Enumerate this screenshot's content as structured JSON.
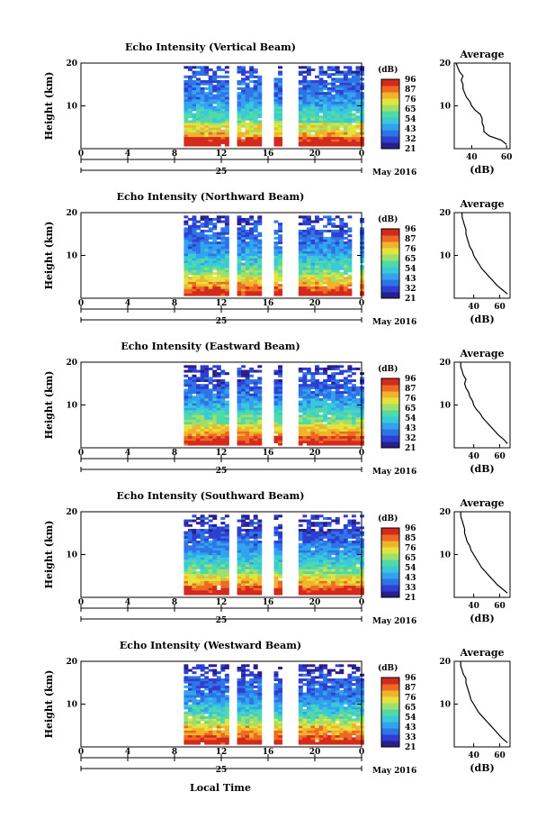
{
  "chart_data": [
    {
      "type": "heatmap",
      "title": "Echo Intensity (Vertical Beam)",
      "ylabel": "Height (km)",
      "xticks": [
        "0",
        "4",
        "8",
        "12",
        "16",
        "20",
        "0"
      ],
      "day_label": "25",
      "month_label": "May 2016",
      "ylim": [
        0,
        20
      ],
      "yticks": [
        "20",
        "10"
      ],
      "xlim": [
        0,
        24
      ],
      "data_start_hour": 8.8,
      "gaps_hours": [
        [
          12.7,
          13.3
        ],
        [
          15.6,
          16.4
        ],
        [
          17.3,
          17.6
        ],
        [
          18.0,
          18.3
        ]
      ],
      "colorbar": {
        "unit": "(dB)",
        "ticks": [
          "96",
          "87",
          "76",
          "65",
          "54",
          "43",
          "32",
          "21"
        ]
      },
      "average_profile": {
        "title": "Average",
        "xlabel": "(dB)",
        "xticks": [
          "40",
          "60"
        ],
        "xlim": [
          30,
          62
        ],
        "heights_km": [
          1,
          2,
          3,
          4,
          5,
          6,
          7,
          8,
          9,
          10,
          11,
          12,
          13,
          14,
          15,
          16,
          17,
          18,
          19,
          20
        ],
        "values_db": [
          60,
          57,
          50,
          47,
          47,
          46,
          46,
          45,
          42,
          40,
          39,
          37,
          36,
          35,
          35,
          34,
          35,
          33,
          32,
          31
        ]
      }
    },
    {
      "type": "heatmap",
      "title": "Echo Intensity (Northward Beam)",
      "ylabel": "Height (km)",
      "xticks": [
        "0",
        "4",
        "8",
        "12",
        "16",
        "20",
        "0"
      ],
      "day_label": "25",
      "month_label": "May 2016",
      "ylim": [
        0,
        20
      ],
      "yticks": [
        "20",
        "10"
      ],
      "xlim": [
        0,
        24
      ],
      "data_start_hour": 8.8,
      "gaps_hours": [
        [
          12.7,
          13.3
        ],
        [
          15.6,
          16.4
        ],
        [
          17.3,
          17.6
        ],
        [
          18.0,
          18.3
        ],
        [
          23.3,
          23.6
        ]
      ],
      "colorbar": {
        "unit": "(dB)",
        "ticks": [
          "96",
          "87",
          "76",
          "65",
          "54",
          "43",
          "32",
          "21"
        ]
      },
      "average_profile": {
        "title": "Average",
        "xlabel": "(dB)",
        "xticks": [
          "40",
          "60"
        ],
        "xlim": [
          25,
          68
        ],
        "heights_km": [
          1,
          2,
          3,
          4,
          5,
          6,
          7,
          8,
          9,
          10,
          11,
          12,
          13,
          14,
          15,
          16,
          17,
          18,
          19,
          20
        ],
        "values_db": [
          66,
          62,
          58,
          55,
          52,
          49,
          46,
          44,
          42,
          40,
          39,
          37,
          36,
          35,
          34,
          34,
          33,
          32,
          31,
          31
        ]
      }
    },
    {
      "type": "heatmap",
      "title": "Echo Intensity (Eastward Beam)",
      "ylabel": "Height (km)",
      "xticks": [
        "0",
        "4",
        "8",
        "12",
        "16",
        "20",
        "0"
      ],
      "day_label": "25",
      "month_label": "May 2016",
      "ylim": [
        0,
        20
      ],
      "yticks": [
        "20",
        "10"
      ],
      "xlim": [
        0,
        24
      ],
      "data_start_hour": 8.8,
      "gaps_hours": [
        [
          12.7,
          13.3
        ],
        [
          15.6,
          16.4
        ],
        [
          17.3,
          17.6
        ],
        [
          18.0,
          18.3
        ]
      ],
      "colorbar": {
        "unit": "(dB)",
        "ticks": [
          "96",
          "87",
          "76",
          "65",
          "54",
          "43",
          "32",
          "21"
        ]
      },
      "average_profile": {
        "title": "Average",
        "xlabel": "(dB)",
        "xticks": [
          "40",
          "60"
        ],
        "xlim": [
          25,
          68
        ],
        "heights_km": [
          1,
          2,
          3,
          4,
          5,
          6,
          7,
          8,
          9,
          10,
          11,
          12,
          13,
          14,
          15,
          16,
          17,
          18,
          19,
          20
        ],
        "values_db": [
          66,
          63,
          59,
          56,
          53,
          50,
          47,
          45,
          42,
          40,
          39,
          37,
          36,
          34,
          33,
          34,
          32,
          31,
          30,
          30
        ]
      }
    },
    {
      "type": "heatmap",
      "title": "Echo Intensity (Southward Beam)",
      "ylabel": "Height (km)",
      "xticks": [
        "0",
        "4",
        "8",
        "12",
        "16",
        "20",
        "0"
      ],
      "day_label": "25",
      "month_label": "May 2016",
      "ylim": [
        0,
        20
      ],
      "yticks": [
        "20",
        "10"
      ],
      "xlim": [
        0,
        24
      ],
      "data_start_hour": 8.8,
      "gaps_hours": [
        [
          12.7,
          13.3
        ],
        [
          15.6,
          16.4
        ],
        [
          17.3,
          17.6
        ],
        [
          18.0,
          18.3
        ]
      ],
      "colorbar": {
        "unit": "(dB)",
        "ticks": [
          "96",
          "85",
          "76",
          "65",
          "54",
          "43",
          "33",
          "21"
        ]
      },
      "average_profile": {
        "title": "Average",
        "xlabel": "(dB)",
        "xticks": [
          "40",
          "60"
        ],
        "xlim": [
          25,
          68
        ],
        "heights_km": [
          1,
          2,
          3,
          4,
          5,
          6,
          7,
          8,
          9,
          10,
          11,
          12,
          13,
          14,
          15,
          16,
          17,
          18,
          19,
          20
        ],
        "values_db": [
          66,
          62,
          58,
          55,
          52,
          49,
          46,
          44,
          42,
          40,
          38,
          37,
          35,
          34,
          33,
          33,
          32,
          31,
          30,
          30
        ]
      }
    },
    {
      "type": "heatmap",
      "title": "Echo Intensity (Westward Beam)",
      "ylabel": "Height (km)",
      "xticks": [
        "0",
        "4",
        "8",
        "12",
        "16",
        "20",
        "0"
      ],
      "day_label": "25",
      "month_label": "May 2016",
      "ylim": [
        0,
        20
      ],
      "yticks": [
        "20",
        "10"
      ],
      "xlim": [
        0,
        24
      ],
      "data_start_hour": 8.8,
      "gaps_hours": [
        [
          12.7,
          13.3
        ],
        [
          15.6,
          16.4
        ],
        [
          17.3,
          17.6
        ],
        [
          18.0,
          18.3
        ]
      ],
      "colorbar": {
        "unit": "(dB)",
        "ticks": [
          "96",
          "87",
          "76",
          "65",
          "54",
          "43",
          "33",
          "21"
        ]
      },
      "average_profile": {
        "title": "Average",
        "xlabel": "(dB)",
        "xticks": [
          "40",
          "60"
        ],
        "xlim": [
          25,
          68
        ],
        "heights_km": [
          1,
          2,
          3,
          4,
          5,
          6,
          7,
          8,
          9,
          10,
          11,
          12,
          13,
          14,
          15,
          16,
          17,
          18,
          19,
          20
        ],
        "values_db": [
          66,
          62,
          59,
          56,
          53,
          50,
          47,
          44,
          42,
          40,
          38,
          37,
          36,
          35,
          34,
          34,
          32,
          31,
          30,
          30
        ]
      }
    }
  ],
  "x_axis_label": "Local Time",
  "colors": {
    "colormap": [
      "#2a1e8c",
      "#2e3fd1",
      "#2f74e6",
      "#33a3ef",
      "#39c9d9",
      "#52d9a8",
      "#9fe06b",
      "#e2e43c",
      "#f2b32c",
      "#ee6a24",
      "#d42a1e"
    ]
  }
}
